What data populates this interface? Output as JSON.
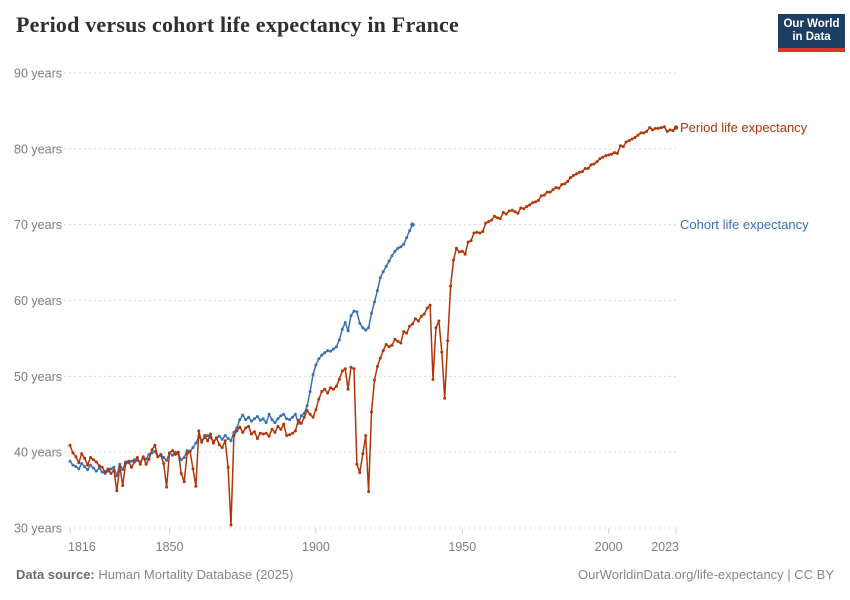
{
  "header": {
    "title": "Period versus cohort life expectancy in France",
    "logo": {
      "line1": "Our World",
      "line2": "in Data",
      "bg_color": "#1d3d63",
      "accent_color": "#d8352b"
    }
  },
  "footer": {
    "source_label": "Data source:",
    "source_value": " Human Mortality Database (2025)",
    "credit": "OurWorldinData.org/life-expectancy | CC BY"
  },
  "chart_data": {
    "type": "line",
    "title": "Period versus cohort life expectancy in France",
    "xlabel": "",
    "ylabel": "",
    "xlim": [
      1816,
      2023
    ],
    "ylim": [
      30,
      90
    ],
    "grid": "horizontal-dashed",
    "legend_position": "right-end-of-line",
    "x_ticks": [
      {
        "value": 1816,
        "label": "1816"
      },
      {
        "value": 1850,
        "label": "1850"
      },
      {
        "value": 1900,
        "label": "1900"
      },
      {
        "value": 1950,
        "label": "1950"
      },
      {
        "value": 2000,
        "label": "2000"
      },
      {
        "value": 2023,
        "label": "2023"
      }
    ],
    "y_ticks": [
      {
        "value": 30,
        "label": "30 years"
      },
      {
        "value": 40,
        "label": "40 years"
      },
      {
        "value": 50,
        "label": "50 years"
      },
      {
        "value": 60,
        "label": "60 years"
      },
      {
        "value": 70,
        "label": "70 years"
      },
      {
        "value": 80,
        "label": "80 years"
      },
      {
        "value": 90,
        "label": "90 years"
      }
    ],
    "series": [
      {
        "name": "Cohort life expectancy",
        "color": "#3b6fb5",
        "start_year": 1816,
        "step": 1,
        "values": [
          38.8,
          38.3,
          38.1,
          37.8,
          38.5,
          38.1,
          37.7,
          38.3,
          37.9,
          37.5,
          37.9,
          37.4,
          37.2,
          37.5,
          37.8,
          38.0,
          36.9,
          38.4,
          37.7,
          38.7,
          38.6,
          38.8,
          39.0,
          38.9,
          38.7,
          39.3,
          39.1,
          39.7,
          39.9,
          40.1,
          39.4,
          39.7,
          39.3,
          38.9,
          39.9,
          39.6,
          40.0,
          39.8,
          39.0,
          39.3,
          40.2,
          40.1,
          40.6,
          41.2,
          42.0,
          41.5,
          41.9,
          42.2,
          41.9,
          41.4,
          41.8,
          42.1,
          41.7,
          42.2,
          41.8,
          41.5,
          42.6,
          43.2,
          44.3,
          44.9,
          44.3,
          44.6,
          44.1,
          44.4,
          44.7,
          44.2,
          44.4,
          43.9,
          45.0,
          44.3,
          43.9,
          44.4,
          44.8,
          45.0,
          44.4,
          44.3,
          44.6,
          45.0,
          43.8,
          44.8,
          45.1,
          46.1,
          48.0,
          50.2,
          51.5,
          52.3,
          52.8,
          53.1,
          53.4,
          53.3,
          53.6,
          53.9,
          54.8,
          56.2,
          57.1,
          56.0,
          58.0,
          58.6,
          58.5,
          57.0,
          56.4,
          56.1,
          56.4,
          58.3,
          59.8,
          61.3,
          63.0,
          63.8,
          64.5,
          65.2,
          65.9,
          66.5,
          66.9,
          67.1,
          67.4,
          68.3,
          69.2,
          70.0
        ]
      },
      {
        "name": "Period life expectancy",
        "color": "#b13507",
        "start_year": 1816,
        "step": 1,
        "values": [
          40.9,
          39.9,
          39.4,
          38.6,
          39.8,
          39.2,
          38.3,
          39.3,
          39.0,
          38.7,
          38.2,
          38.0,
          37.4,
          37.8,
          37.2,
          37.6,
          34.9,
          38.1,
          35.6,
          38.5,
          38.8,
          38.0,
          38.7,
          39.3,
          38.4,
          39.4,
          38.4,
          39.1,
          40.3,
          40.9,
          39.4,
          39.6,
          38.5,
          35.4,
          39.9,
          40.2,
          39.7,
          40.0,
          37.2,
          36.1,
          39.8,
          40.1,
          37.8,
          35.5,
          42.8,
          41.3,
          42.2,
          41.5,
          42.4,
          41.2,
          41.9,
          41.0,
          40.6,
          41.5,
          38.0,
          30.4,
          42.2,
          42.8,
          43.3,
          42.6,
          43.2,
          43.4,
          42.4,
          42.7,
          41.8,
          42.5,
          42.4,
          42.5,
          42.1,
          43.0,
          42.6,
          43.4,
          43.0,
          43.7,
          42.2,
          42.3,
          42.5,
          42.8,
          44.2,
          43.8,
          44.6,
          45.5,
          45.0,
          44.6,
          45.6,
          47.0,
          48.0,
          48.3,
          47.8,
          48.5,
          48.3,
          48.7,
          49.6,
          50.7,
          51.0,
          48.3,
          51.2,
          51.0,
          38.4,
          37.3,
          39.8,
          42.2,
          34.8,
          45.3,
          49.5,
          51.3,
          52.4,
          53.4,
          54.2,
          53.9,
          54.1,
          54.9,
          54.6,
          54.4,
          55.9,
          55.7,
          56.6,
          56.9,
          57.6,
          57.3,
          57.9,
          58.2,
          59.0,
          59.4,
          49.6,
          56.4,
          57.3,
          53.2,
          47.1,
          54.7,
          61.9,
          65.3,
          66.9,
          66.4,
          66.5,
          66.1,
          67.7,
          67.9,
          68.9,
          69.0,
          68.9,
          69.1,
          70.2,
          70.4,
          70.6,
          71.1,
          70.9,
          70.8,
          71.6,
          71.4,
          71.8,
          71.9,
          71.7,
          71.5,
          72.2,
          72.1,
          72.4,
          72.6,
          72.9,
          73.0,
          73.2,
          73.8,
          73.9,
          74.3,
          74.3,
          74.6,
          74.9,
          74.8,
          75.3,
          75.4,
          75.7,
          76.2,
          76.5,
          76.7,
          76.9,
          77.0,
          77.4,
          77.4,
          77.9,
          78.0,
          78.3,
          78.7,
          78.9,
          79.1,
          79.2,
          79.3,
          79.5,
          79.4,
          80.4,
          80.3,
          80.9,
          81.1,
          81.3,
          81.5,
          81.8,
          82.1,
          82.1,
          82.3,
          82.8,
          82.5,
          82.7,
          82.7,
          82.8,
          82.9,
          82.3,
          82.5,
          82.4,
          82.8
        ]
      }
    ]
  }
}
